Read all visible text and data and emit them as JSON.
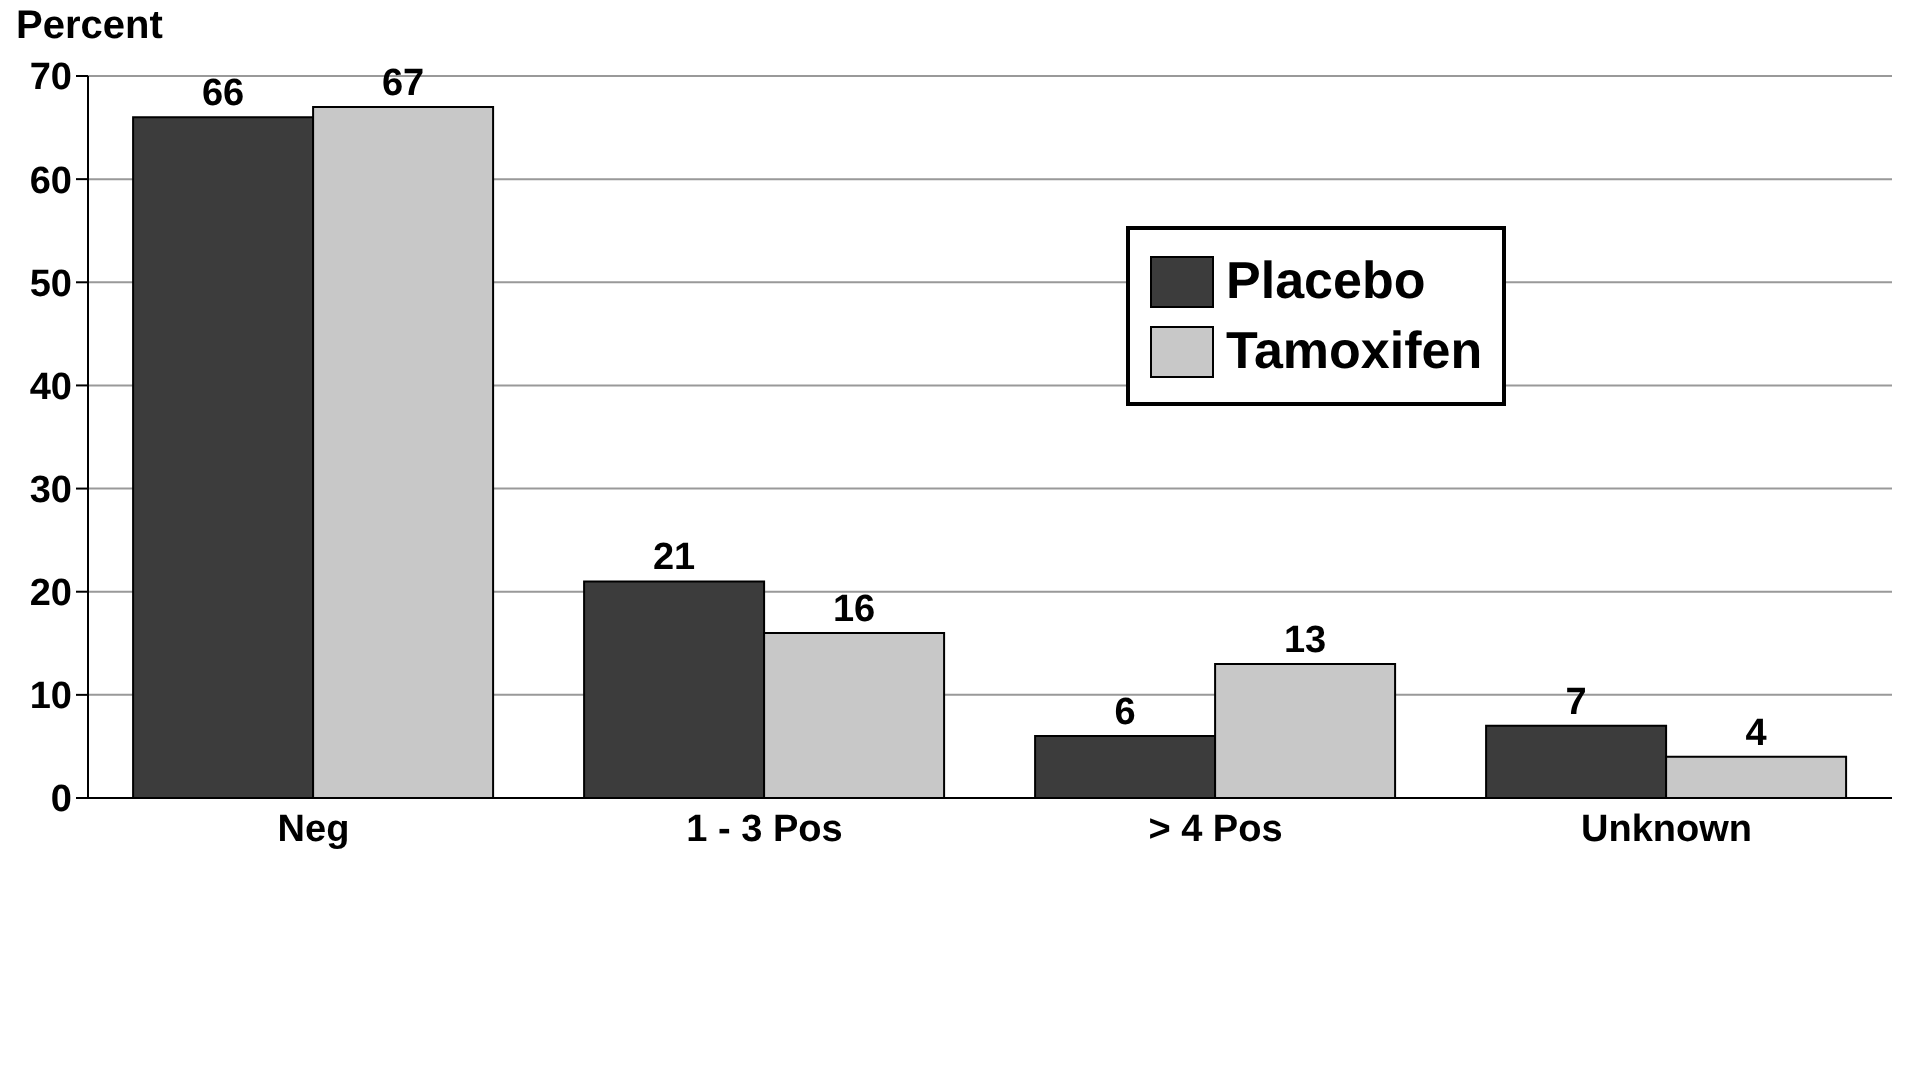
{
  "chart_data": {
    "type": "bar",
    "ylabel": "Percent",
    "categories": [
      "Neg",
      "1 - 3 Pos",
      "> 4 Pos",
      "Unknown"
    ],
    "series": [
      {
        "name": "Placebo",
        "color": "#3c3c3c",
        "values": [
          66,
          21,
          6,
          7
        ]
      },
      {
        "name": "Tamoxifen",
        "color": "#c8c8c8",
        "values": [
          67,
          16,
          13,
          4
        ]
      }
    ],
    "ylim": [
      0,
      70
    ],
    "yticks": [
      0,
      10,
      20,
      30,
      40,
      50,
      60,
      70
    ],
    "grid": "y",
    "legend": "top right",
    "data_labels": true
  }
}
